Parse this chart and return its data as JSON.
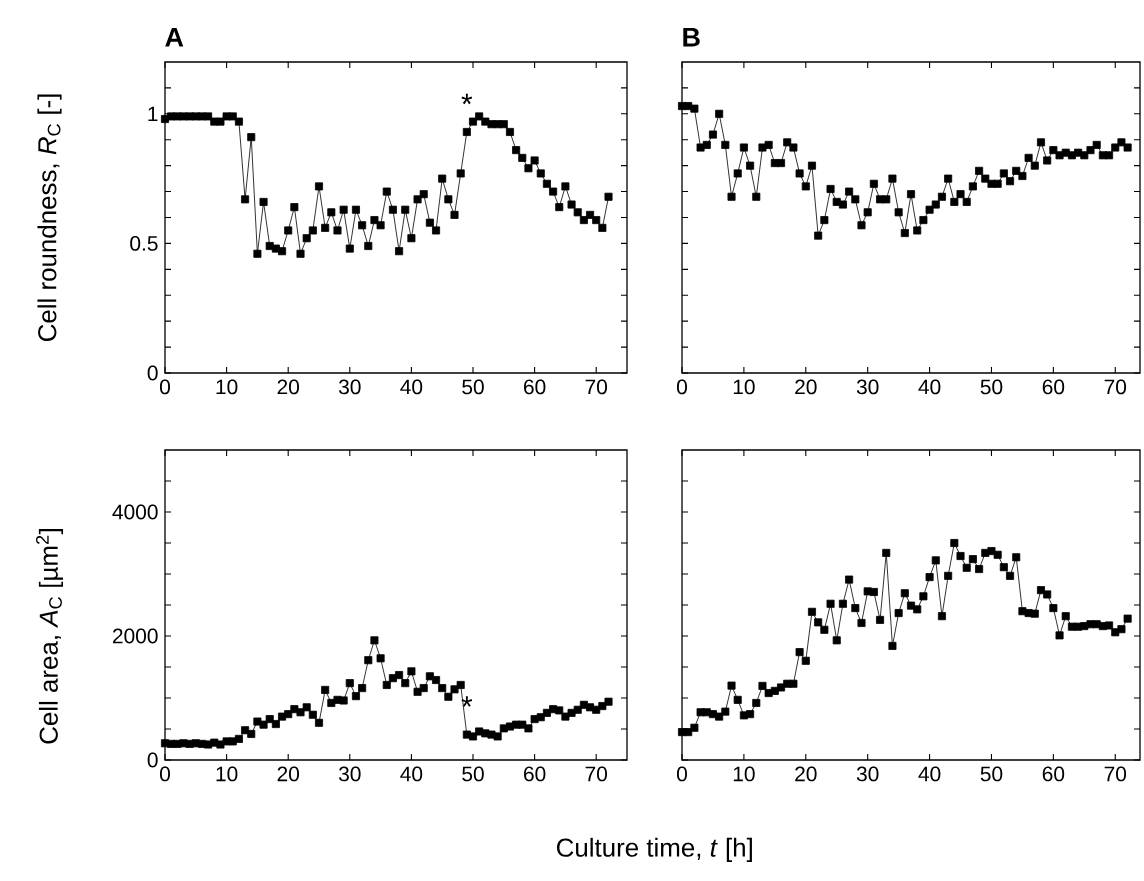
{
  "chart_data": [
    {
      "type": "line",
      "title": "A",
      "ylabel": "Cell roundness, *R*$_{C}$ [-]",
      "marker": "square",
      "line_style": "solid",
      "color": "#000000",
      "x": [
        0,
        1,
        2,
        3,
        4,
        5,
        6,
        7,
        8,
        9,
        10,
        11,
        12,
        13,
        14,
        15,
        16,
        17,
        18,
        19,
        20,
        21,
        22,
        23,
        24,
        25,
        26,
        27,
        28,
        29,
        30,
        31,
        32,
        33,
        34,
        35,
        36,
        37,
        38,
        39,
        40,
        41,
        42,
        43,
        44,
        45,
        46,
        47,
        48,
        49,
        50,
        51,
        52,
        53,
        54,
        55,
        56,
        57,
        58,
        59,
        60,
        61,
        62,
        63,
        64,
        65,
        66,
        67,
        68,
        69,
        70,
        71,
        72
      ],
      "values": [
        0.98,
        0.99,
        0.99,
        0.99,
        0.99,
        0.99,
        0.99,
        0.99,
        0.97,
        0.97,
        0.99,
        0.99,
        0.97,
        0.67,
        0.91,
        0.46,
        0.66,
        0.49,
        0.48,
        0.47,
        0.55,
        0.64,
        0.46,
        0.52,
        0.55,
        0.72,
        0.56,
        0.62,
        0.55,
        0.63,
        0.48,
        0.63,
        0.57,
        0.49,
        0.59,
        0.57,
        0.7,
        0.63,
        0.47,
        0.63,
        0.52,
        0.67,
        0.69,
        0.58,
        0.55,
        0.75,
        0.67,
        0.61,
        0.77,
        0.93,
        0.97,
        0.99,
        0.97,
        0.96,
        0.96,
        0.96,
        0.93,
        0.86,
        0.83,
        0.79,
        0.82,
        0.77,
        0.73,
        0.7,
        0.64,
        0.72,
        0.65,
        0.62,
        0.59,
        0.61,
        0.59,
        0.56,
        0.68
      ],
      "xlim": [
        0,
        75
      ],
      "ylim": [
        0,
        1.2
      ],
      "xticks": [
        0,
        10,
        20,
        30,
        40,
        50,
        60,
        70
      ],
      "yticks": [
        0,
        {
          "value": 0.1,
          "label": null
        },
        {
          "value": 0.2,
          "label": null
        },
        {
          "value": 0.3,
          "label": null
        },
        {
          "value": 0.4,
          "label": null
        },
        0.5,
        {
          "value": 0.6,
          "label": null
        },
        {
          "value": 0.7,
          "label": null
        },
        {
          "value": 0.8,
          "label": null
        },
        {
          "value": 0.9,
          "label": null
        },
        1,
        {
          "value": 1.1,
          "label": null
        }
      ],
      "annotations": [
        {
          "text": "*",
          "x": 49,
          "y": 0.93
        }
      ]
    },
    {
      "type": "line",
      "title": "B",
      "marker": "square",
      "line_style": "solid",
      "color": "#000000",
      "tick_labels": "x",
      "x": [
        0,
        1,
        2,
        3,
        4,
        5,
        6,
        7,
        8,
        9,
        10,
        11,
        12,
        13,
        14,
        15,
        16,
        17,
        18,
        19,
        20,
        21,
        22,
        23,
        24,
        25,
        26,
        27,
        28,
        29,
        30,
        31,
        32,
        33,
        34,
        35,
        36,
        37,
        38,
        39,
        40,
        41,
        42,
        43,
        44,
        45,
        46,
        47,
        48,
        49,
        50,
        51,
        52,
        53,
        54,
        55,
        56,
        57,
        58,
        59,
        60,
        61,
        62,
        63,
        64,
        65,
        66,
        67,
        68,
        69,
        70,
        71,
        72
      ],
      "values": [
        1.03,
        1.03,
        1.02,
        0.87,
        0.88,
        0.92,
        1.0,
        0.88,
        0.68,
        0.77,
        0.87,
        0.8,
        0.68,
        0.87,
        0.88,
        0.81,
        0.81,
        0.89,
        0.87,
        0.77,
        0.72,
        0.8,
        0.53,
        0.59,
        0.71,
        0.66,
        0.65,
        0.7,
        0.67,
        0.57,
        0.62,
        0.73,
        0.67,
        0.67,
        0.75,
        0.62,
        0.54,
        0.69,
        0.55,
        0.59,
        0.63,
        0.65,
        0.68,
        0.75,
        0.66,
        0.69,
        0.66,
        0.72,
        0.78,
        0.75,
        0.73,
        0.73,
        0.77,
        0.74,
        0.78,
        0.76,
        0.83,
        0.8,
        0.89,
        0.82,
        0.86,
        0.84,
        0.85,
        0.84,
        0.85,
        0.84,
        0.86,
        0.88,
        0.84,
        0.84,
        0.87,
        0.89,
        0.87
      ],
      "xlim": [
        0,
        74
      ],
      "ylim": [
        0,
        1.2
      ],
      "xticks": [
        0,
        10,
        20,
        30,
        40,
        50,
        60,
        70
      ],
      "yticks": [
        0,
        {
          "value": 0.1,
          "label": null
        },
        {
          "value": 0.2,
          "label": null
        },
        {
          "value": 0.3,
          "label": null
        },
        {
          "value": 0.4,
          "label": null
        },
        0.5,
        {
          "value": 0.6,
          "label": null
        },
        {
          "value": 0.7,
          "label": null
        },
        {
          "value": 0.8,
          "label": null
        },
        {
          "value": 0.9,
          "label": null
        },
        1,
        {
          "value": 1.1,
          "label": null
        }
      ]
    },
    {
      "type": "line",
      "ylabel": "Cell area, *A*$_{C}$ [µm$^{2}$]",
      "xlabel": "Culture time, *t* [h]",
      "marker": "square",
      "line_style": "solid",
      "color": "#000000",
      "x": [
        0,
        1,
        2,
        3,
        4,
        5,
        6,
        7,
        8,
        9,
        10,
        11,
        12,
        13,
        14,
        15,
        16,
        17,
        18,
        19,
        20,
        21,
        22,
        23,
        24,
        25,
        26,
        27,
        28,
        29,
        30,
        31,
        32,
        33,
        34,
        35,
        36,
        37,
        38,
        39,
        40,
        41,
        42,
        43,
        44,
        45,
        46,
        47,
        48,
        49,
        50,
        51,
        52,
        53,
        54,
        55,
        56,
        57,
        58,
        59,
        60,
        61,
        62,
        63,
        64,
        65,
        66,
        67,
        68,
        69,
        70,
        71,
        72
      ],
      "values": [
        270,
        260,
        260,
        270,
        260,
        270,
        260,
        250,
        280,
        250,
        300,
        300,
        340,
        480,
        420,
        620,
        570,
        660,
        580,
        700,
        740,
        820,
        770,
        850,
        730,
        600,
        1130,
        920,
        970,
        960,
        1240,
        1030,
        1160,
        1610,
        1930,
        1640,
        1210,
        1320,
        1370,
        1240,
        1430,
        1100,
        1160,
        1350,
        1290,
        1160,
        1020,
        1140,
        1210,
        410,
        380,
        460,
        430,
        410,
        380,
        510,
        540,
        570,
        570,
        510,
        660,
        690,
        760,
        820,
        800,
        700,
        760,
        810,
        890,
        850,
        810,
        870,
        940
      ],
      "xlim": [
        0,
        75
      ],
      "ylim": [
        0,
        5000
      ],
      "xticks": [
        0,
        10,
        20,
        30,
        40,
        50,
        60,
        70
      ],
      "yticks": [
        0,
        {
          "value": 500,
          "label": null
        },
        {
          "value": 1000,
          "label": null
        },
        {
          "value": 1500,
          "label": null
        },
        2000,
        {
          "value": 2500,
          "label": null
        },
        {
          "value": 3000,
          "label": null
        },
        {
          "value": 3500,
          "label": null
        },
        4000,
        {
          "value": 4500,
          "label": null
        }
      ],
      "annotations": [
        {
          "text": "*",
          "x": 49,
          "y": 410
        }
      ]
    },
    {
      "type": "line",
      "marker": "square",
      "line_style": "solid",
      "color": "#000000",
      "tick_labels": "x",
      "x": [
        0,
        1,
        2,
        3,
        4,
        5,
        6,
        7,
        8,
        9,
        10,
        11,
        12,
        13,
        14,
        15,
        16,
        17,
        18,
        19,
        20,
        21,
        22,
        23,
        24,
        25,
        26,
        27,
        28,
        29,
        30,
        31,
        32,
        33,
        34,
        35,
        36,
        37,
        38,
        39,
        40,
        41,
        42,
        43,
        44,
        45,
        46,
        47,
        48,
        49,
        50,
        51,
        52,
        53,
        54,
        55,
        56,
        57,
        58,
        59,
        60,
        61,
        62,
        63,
        64,
        65,
        66,
        67,
        68,
        69,
        70,
        71,
        72
      ],
      "values": [
        450,
        450,
        520,
        770,
        770,
        740,
        700,
        780,
        1200,
        970,
        720,
        740,
        920,
        1195,
        1080,
        1115,
        1170,
        1230,
        1230,
        1740,
        1600,
        2390,
        2220,
        2100,
        2520,
        1930,
        2520,
        2910,
        2450,
        2210,
        2720,
        2710,
        2260,
        3340,
        1840,
        2370,
        2690,
        2490,
        2430,
        2640,
        2950,
        3220,
        2320,
        2970,
        3500,
        3290,
        3100,
        3240,
        3080,
        3340,
        3370,
        3310,
        3110,
        2970,
        3270,
        2400,
        2370,
        2360,
        2740,
        2670,
        2450,
        2010,
        2320,
        2150,
        2150,
        2160,
        2190,
        2190,
        2160,
        2170,
        2060,
        2110,
        2280
      ],
      "xlim": [
        0,
        74
      ],
      "ylim": [
        0,
        5000
      ],
      "xticks": [
        0,
        10,
        20,
        30,
        40,
        50,
        60,
        70
      ],
      "yticks": [
        0,
        {
          "value": 500,
          "label": null
        },
        {
          "value": 1000,
          "label": null
        },
        {
          "value": 1500,
          "label": null
        },
        2000,
        {
          "value": 2500,
          "label": null
        },
        {
          "value": 3000,
          "label": null
        },
        {
          "value": 3500,
          "label": null
        },
        4000,
        {
          "value": 4500,
          "label": null
        }
      ]
    }
  ]
}
